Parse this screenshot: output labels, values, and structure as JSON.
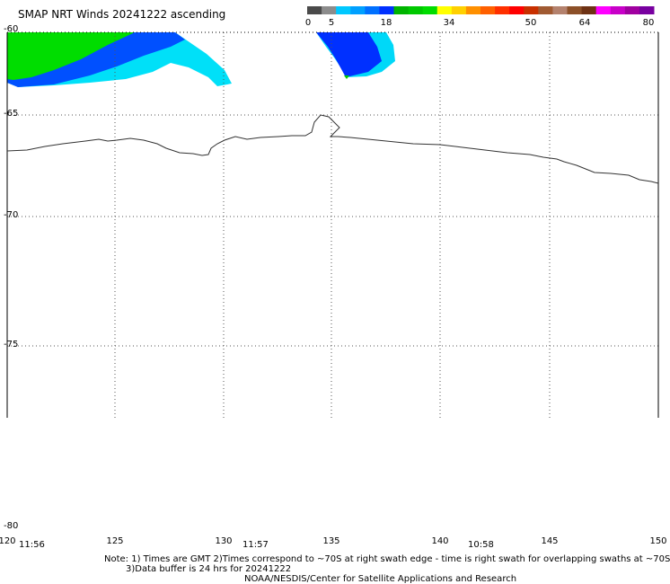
{
  "title": "SMAP NRT Winds 20241222 ascending",
  "colorbar": {
    "ticks": [
      "0",
      "5",
      "18",
      "34",
      "50",
      "64",
      "80"
    ],
    "colors": [
      "#4a4a4a",
      "#8c8c8c",
      "#00c8ff",
      "#00a0ff",
      "#0070ff",
      "#0030ff",
      "#00b400",
      "#00c800",
      "#00dc00",
      "#ffff00",
      "#ffd000",
      "#ff9000",
      "#ff6000",
      "#ff3000",
      "#ff0000",
      "#c83000",
      "#a05a32",
      "#b4826e",
      "#8c5028",
      "#6e3214",
      "#ff00ff",
      "#c800c8",
      "#a000a0",
      "#7800a0"
    ]
  },
  "axes": {
    "lat_labels": [
      "-60",
      "-65",
      "-70",
      "-75",
      "-80"
    ],
    "lon_labels": [
      "120",
      "125",
      "130",
      "135",
      "140",
      "145",
      "150"
    ],
    "times": [
      "11:56",
      "11:57",
      "10:58"
    ]
  },
  "notes": {
    "line1": "Note: 1) Times are GMT 2)Times correspond to ~70S at right swath edge - time is right swath for overlapping swaths at ~70S",
    "line2": "3)Data buffer is 24 hrs for 20241222",
    "line3": "NOAA/NESDIS/Center for Satellite Applications and Research"
  }
}
